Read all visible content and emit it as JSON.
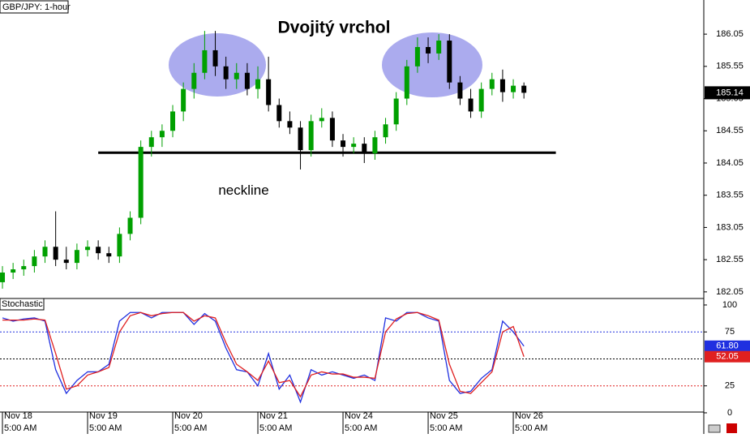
{
  "chart_data": [
    {
      "type": "candlestick",
      "title": "Dvojitý vrchol",
      "label": "GBP/JPY: 1-hour",
      "x": [
        0,
        3,
        6,
        9,
        12,
        15,
        18,
        21,
        24,
        27,
        30,
        33,
        36,
        39,
        42,
        45,
        48,
        51,
        54,
        57,
        60,
        63,
        66,
        69,
        72,
        75,
        78,
        81,
        84,
        87,
        90,
        93,
        96,
        99,
        102,
        105,
        108,
        111,
        114,
        117,
        120,
        123,
        126,
        129,
        132,
        135,
        138,
        141,
        144,
        147
      ],
      "open": [
        182.2,
        182.35,
        182.4,
        182.45,
        182.6,
        182.75,
        182.55,
        182.5,
        182.7,
        182.75,
        182.65,
        182.6,
        182.95,
        183.2,
        184.3,
        184.45,
        184.55,
        184.85,
        185.2,
        185.45,
        185.8,
        185.55,
        185.35,
        185.45,
        185.2,
        185.35,
        184.95,
        184.7,
        184.6,
        184.25,
        184.7,
        184.75,
        184.4,
        184.3,
        184.35,
        184.2,
        184.45,
        184.65,
        185.05,
        185.55,
        185.85,
        185.75,
        185.95,
        185.3,
        185.05,
        184.85,
        185.2,
        185.35,
        185.15,
        185.25
      ],
      "high": [
        182.45,
        182.5,
        182.55,
        182.7,
        182.85,
        183.3,
        182.75,
        182.8,
        182.85,
        182.85,
        182.75,
        183.05,
        183.3,
        184.4,
        184.55,
        184.65,
        184.95,
        185.3,
        185.6,
        186.1,
        186.1,
        185.7,
        185.6,
        185.6,
        185.55,
        185.7,
        185.05,
        184.85,
        184.7,
        184.8,
        184.9,
        184.85,
        184.5,
        184.45,
        184.45,
        184.55,
        184.75,
        185.15,
        185.65,
        186.0,
        186.0,
        186.05,
        186.05,
        185.4,
        185.2,
        185.3,
        185.45,
        185.5,
        185.35,
        185.3
      ],
      "low": [
        182.1,
        182.25,
        182.3,
        182.35,
        182.5,
        182.45,
        182.4,
        182.4,
        182.6,
        182.55,
        182.5,
        182.5,
        182.85,
        183.1,
        184.15,
        184.3,
        184.45,
        184.7,
        185.05,
        185.35,
        185.4,
        185.2,
        185.2,
        185.1,
        185.05,
        184.85,
        184.6,
        184.5,
        183.95,
        184.15,
        184.6,
        184.3,
        184.15,
        184.2,
        184.05,
        184.1,
        184.35,
        184.55,
        184.95,
        185.45,
        185.6,
        185.65,
        185.2,
        184.95,
        184.75,
        184.75,
        185.1,
        185.0,
        185.05,
        185.05
      ],
      "close": [
        182.35,
        182.4,
        182.45,
        182.6,
        182.75,
        182.55,
        182.5,
        182.7,
        182.75,
        182.65,
        182.6,
        182.95,
        183.2,
        184.3,
        184.45,
        184.55,
        184.85,
        185.2,
        185.45,
        185.8,
        185.55,
        185.35,
        185.45,
        185.2,
        185.35,
        184.95,
        184.7,
        184.6,
        184.25,
        184.7,
        184.75,
        184.4,
        184.3,
        184.35,
        184.2,
        184.45,
        184.65,
        185.05,
        185.55,
        185.85,
        185.75,
        185.95,
        185.3,
        185.05,
        184.85,
        185.2,
        185.35,
        185.15,
        185.25,
        185.14
      ],
      "last_value_label": "185.14",
      "up_color": "#00a000",
      "down_color": "#000000",
      "xlim": [
        -0.69,
        197.7
      ],
      "ylim": [
        181.96,
        186.58
      ],
      "yticks": [
        182.05,
        182.55,
        183.05,
        183.55,
        184.05,
        184.55,
        185.05,
        185.55,
        186.05
      ],
      "neckline": {
        "label": "neckline",
        "value": 184.21,
        "x": [
          27,
          156
        ]
      }
    },
    {
      "type": "line",
      "label": "Stochastic",
      "x": [
        0,
        3,
        6,
        9,
        12,
        15,
        18,
        21,
        24,
        27,
        30,
        33,
        36,
        39,
        42,
        45,
        48,
        51,
        54,
        57,
        60,
        63,
        66,
        69,
        72,
        75,
        78,
        81,
        84,
        87,
        90,
        93,
        96,
        99,
        102,
        105,
        108,
        111,
        114,
        117,
        120,
        123,
        126,
        129,
        132,
        135,
        138,
        141,
        144,
        147
      ],
      "series": [
        {
          "color": "#2030e0",
          "values": [
            88,
            85,
            87,
            88,
            85,
            40,
            18,
            30,
            38,
            38,
            45,
            85,
            93,
            93,
            88,
            93,
            93,
            93,
            82,
            92,
            85,
            60,
            40,
            38,
            25,
            55,
            22,
            35,
            10,
            40,
            35,
            38,
            35,
            32,
            35,
            30,
            88,
            85,
            93,
            93,
            88,
            85,
            30,
            18,
            20,
            32,
            40,
            85,
            75,
            61.8
          ],
          "last_value_label": "61.80"
        },
        {
          "color": "#e02020",
          "values": [
            86,
            86,
            86,
            87,
            86,
            55,
            22,
            25,
            35,
            38,
            42,
            75,
            90,
            93,
            90,
            92,
            93,
            93,
            85,
            90,
            88,
            65,
            45,
            38,
            30,
            48,
            28,
            30,
            15,
            35,
            38,
            36,
            36,
            33,
            33,
            32,
            75,
            87,
            92,
            93,
            90,
            86,
            45,
            20,
            18,
            28,
            38,
            75,
            80,
            52.05
          ],
          "last_value_label": "52.05"
        }
      ],
      "levels": [
        {
          "value": 75,
          "color": "#2030e0"
        },
        {
          "value": 50,
          "color": "#000000"
        },
        {
          "value": 25,
          "color": "#e02020"
        }
      ],
      "xlim": [
        -0.69,
        197.7
      ],
      "ylim": [
        -6.8,
        106
      ],
      "yticks": [
        0,
        25,
        75,
        100
      ],
      "xticks": [
        {
          "value": 0,
          "label": [
            "Nov 18",
            "5:00 AM"
          ]
        },
        {
          "value": 24,
          "label": [
            "Nov 19",
            "5:00 AM"
          ]
        },
        {
          "value": 48,
          "label": [
            "Nov 20",
            "5:00 AM"
          ]
        },
        {
          "value": 72,
          "label": [
            "Nov 21",
            "5:00 AM"
          ]
        },
        {
          "value": 96,
          "label": [
            "Nov 24",
            "5:00 AM"
          ]
        },
        {
          "value": 120,
          "label": [
            "Nov 25",
            "5:00 AM"
          ]
        },
        {
          "value": 144,
          "label": [
            "Nov 26",
            "5:00 AM"
          ]
        }
      ]
    }
  ]
}
